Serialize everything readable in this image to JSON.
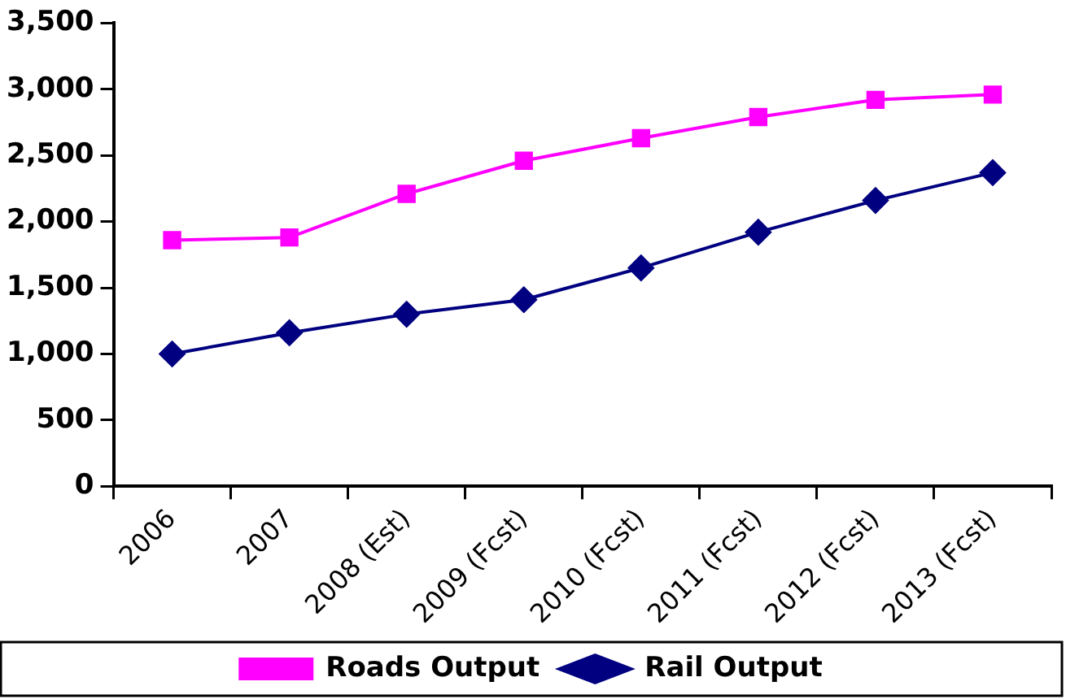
{
  "chart_data": {
    "type": "line",
    "categories": [
      "2006",
      "2007",
      "2008 (Est)",
      "2009 (Fcst)",
      "2010 (Fcst)",
      "2011 (Fcst)",
      "2012 (Fcst)",
      "2013 (Fcst)"
    ],
    "series": [
      {
        "name": "Roads Output",
        "color": "#ff00ff",
        "marker": "square",
        "values": [
          1860,
          1880,
          2210,
          2460,
          2630,
          2790,
          2920,
          2960
        ]
      },
      {
        "name": "Rail Output",
        "color": "#000080",
        "marker": "diamond",
        "values": [
          1000,
          1160,
          1300,
          1410,
          1650,
          1920,
          2160,
          2370
        ]
      }
    ],
    "ylim": [
      0,
      3500
    ],
    "yticks": [
      {
        "value": 0,
        "label": "0"
      },
      {
        "value": 500,
        "label": "500"
      },
      {
        "value": 1000,
        "label": "1,000"
      },
      {
        "value": 1500,
        "label": "1,500"
      },
      {
        "value": 2000,
        "label": "2,000"
      },
      {
        "value": 2500,
        "label": "2,500"
      },
      {
        "value": 3000,
        "label": "3,000"
      },
      {
        "value": 3500,
        "label": "3,500"
      }
    ],
    "grid": false,
    "legend": "bottom",
    "line_style": "solid"
  }
}
